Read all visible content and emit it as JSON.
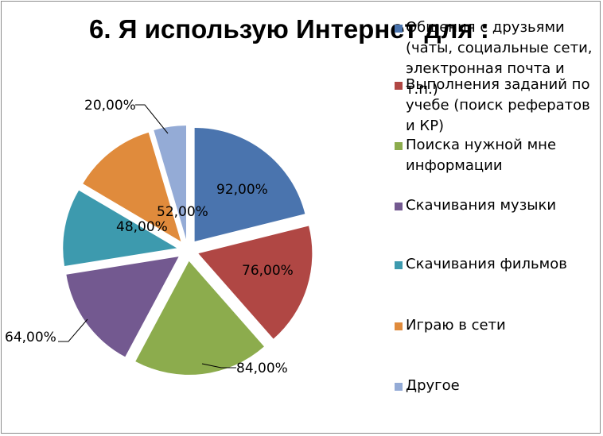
{
  "chart_data": {
    "type": "pie",
    "title": "6. Я использую Интернет для :",
    "legend_position": "right",
    "exploded": true,
    "series": [
      {
        "name": "",
        "categories": [
          "Общения с друзьями (чаты, социальные сети, электронная почта и т.п.)",
          "Выполнения заданий по учебе (поиск рефератов и КР)",
          "Поиска нужной мне информации",
          "Скачивания музыки",
          "Скачивания фильмов",
          "Играю в сети",
          "Другое"
        ],
        "values": [
          92,
          76,
          84,
          64,
          48,
          52,
          20
        ],
        "labels": [
          "92,00%",
          "76,00%",
          "84,00%",
          "64,00%",
          "48,00%",
          "52,00%",
          "20,00%"
        ],
        "colors": [
          "#4A74AE",
          "#B04744",
          "#8CAC4D",
          "#735990",
          "#3D9AAE",
          "#E08B3C",
          "#94ABD6"
        ]
      }
    ]
  }
}
